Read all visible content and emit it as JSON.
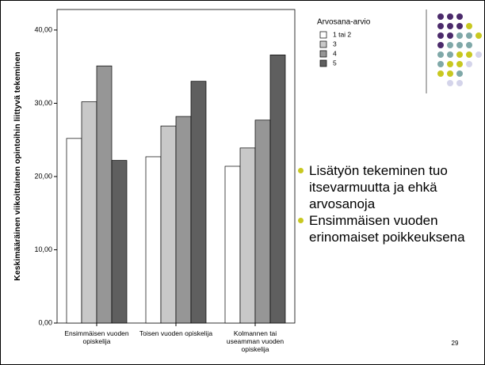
{
  "chart_data": {
    "type": "bar",
    "y_label": "Keskimääräinen viikoittainen opintoihin liittyvä tekeminen",
    "categories": [
      "Ensimmäisen vuoden opiskelija",
      "Toisen vuoden opiskelija",
      "Kolmannen tai useamman vuoden opiskelija"
    ],
    "series": [
      {
        "name": "1 tai 2",
        "color": "#ffffff",
        "values": [
          25.2,
          22.7,
          21.4
        ]
      },
      {
        "name": "3",
        "color": "#c8c8c8",
        "values": [
          30.2,
          26.9,
          23.9
        ]
      },
      {
        "name": "4",
        "color": "#969696",
        "values": [
          35.1,
          28.2,
          27.7
        ]
      },
      {
        "name": "5",
        "color": "#5f5f5f",
        "values": [
          22.2,
          33.0,
          36.6
        ]
      }
    ],
    "legend_title": "Arvosana-arvio",
    "ylim": [
      0,
      42.8
    ],
    "yticks": [
      {
        "value": 0,
        "label": "0,00"
      },
      {
        "value": 10,
        "label": "10,00"
      },
      {
        "value": 20,
        "label": "20,00"
      },
      {
        "value": 30,
        "label": "30,00"
      },
      {
        "value": 40,
        "label": "40,00"
      }
    ]
  },
  "bullets": [
    "Lisätyön tekeminen tuo itsevarmuutta ja ehkä arvosanoja",
    "Ensimmäisen vuoden erinomaiset poikkeuksena"
  ],
  "page_number": "29"
}
